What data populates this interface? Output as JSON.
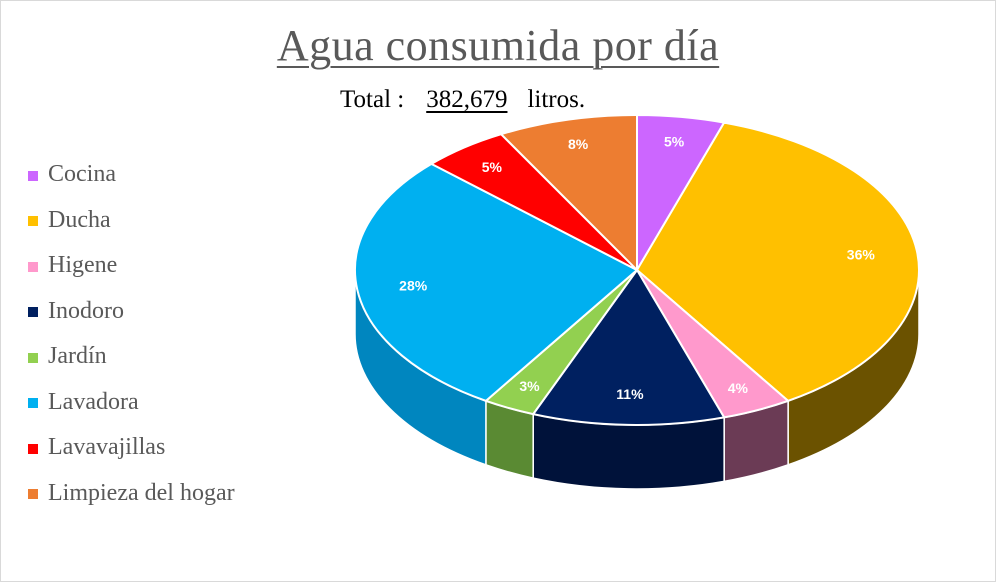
{
  "chart_data": {
    "type": "pie",
    "title": "Agua consumida por día",
    "subtitle": {
      "label": "Total :",
      "value": "382,679",
      "unit": "litros."
    },
    "legend_position": "left",
    "slices": [
      {
        "name": "Cocina",
        "value": 5,
        "label": "5%",
        "color": "#cc66ff",
        "side": "#8a3fb0"
      },
      {
        "name": "Ducha",
        "value": 36,
        "label": "36%",
        "color": "#ffc000",
        "side": "#6b5200"
      },
      {
        "name": "Higene",
        "value": 4,
        "label": "4%",
        "color": "#ff99cc",
        "side": "#6b3b55"
      },
      {
        "name": "Inodoro",
        "value": 11,
        "label": "11%",
        "color": "#002060",
        "side": "#00123a"
      },
      {
        "name": "Jardín",
        "value": 3,
        "label": "3%",
        "color": "#92d050",
        "side": "#5a8a33"
      },
      {
        "name": "Lavadora",
        "value": 28,
        "label": "28%",
        "color": "#00b0f0",
        "side": "#0086bf"
      },
      {
        "name": "Lavavajillas",
        "value": 5,
        "label": "5%",
        "color": "#ff0000",
        "side": "#a30000"
      },
      {
        "name": "Limpieza del hogar",
        "value": 8,
        "label": "8%",
        "color": "#ed7d31",
        "side": "#9e4f1a"
      }
    ]
  }
}
